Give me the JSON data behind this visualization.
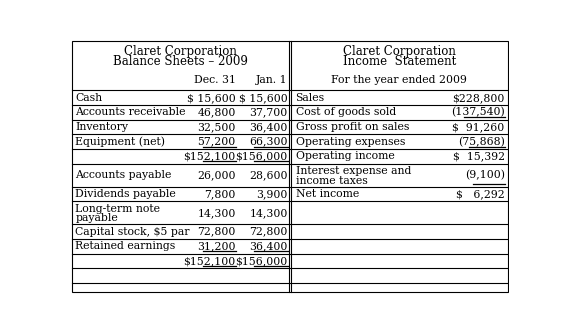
{
  "bs_title1": "Claret Corporation",
  "bs_title2": "Balance Sheets – 2009",
  "bs_col1": "Dec. 31",
  "bs_col2": "Jan. 1",
  "is_title1": "Claret Corporation",
  "is_title2": "Income  Statement",
  "is_col1": "For the year ended 2009",
  "bs_rows": [
    {
      "label": "Cash",
      "dec31": "$ 15,600",
      "jan1": "$ 15,600",
      "ul_dec": false,
      "ul_jan": false,
      "tall": false
    },
    {
      "label": "Accounts receivable",
      "dec31": "46,800",
      "jan1": "37,700",
      "ul_dec": false,
      "ul_jan": false,
      "tall": false
    },
    {
      "label": "Inventory",
      "dec31": "32,500",
      "jan1": "36,400",
      "ul_dec": false,
      "ul_jan": false,
      "tall": false
    },
    {
      "label": "Equipment (net)",
      "dec31": "57,200",
      "jan1": "66,300",
      "ul_dec": true,
      "ul_jan": true,
      "tall": false
    },
    {
      "label": "",
      "dec31": "$152,100",
      "jan1": "$156,000",
      "ul_dec": true,
      "ul_jan": true,
      "tall": false
    },
    {
      "label": "Accounts payable",
      "dec31": "26,000",
      "jan1": "28,600",
      "ul_dec": false,
      "ul_jan": false,
      "tall": true
    },
    {
      "label": "Dividends payable",
      "dec31": "7,800",
      "jan1": "3,900",
      "ul_dec": false,
      "ul_jan": false,
      "tall": false
    },
    {
      "label": "Long-term note\npayable",
      "dec31": "14,300",
      "jan1": "14,300",
      "ul_dec": false,
      "ul_jan": false,
      "tall": true
    },
    {
      "label": "Capital stock, $5 par",
      "dec31": "72,800",
      "jan1": "72,800",
      "ul_dec": false,
      "ul_jan": false,
      "tall": false
    },
    {
      "label": "Retained earnings",
      "dec31": "31,200",
      "jan1": "36,400",
      "ul_dec": true,
      "ul_jan": true,
      "tall": false
    },
    {
      "label": "",
      "dec31": "$152,100",
      "jan1": "$156,000",
      "ul_dec": true,
      "ul_jan": true,
      "tall": false
    },
    {
      "label": "",
      "dec31": "",
      "jan1": "",
      "ul_dec": false,
      "ul_jan": false,
      "tall": false
    }
  ],
  "is_rows": [
    {
      "label": "Sales",
      "val": "$228,800",
      "ul": false,
      "tall": false
    },
    {
      "label": "Cost of goods sold",
      "val": "(137,540)",
      "ul": true,
      "tall": false
    },
    {
      "label": "Gross profit on sales",
      "val": "$  91,260",
      "ul": false,
      "tall": false
    },
    {
      "label": "Operating expenses",
      "val": "(75,868)",
      "ul": true,
      "tall": false
    },
    {
      "label": "Operating income",
      "val": "$  15,392",
      "ul": false,
      "tall": false
    },
    {
      "label": "Interest expense and\nincome taxes",
      "val": "(9,100)",
      "ul": true,
      "tall": true
    },
    {
      "label": "Net income",
      "val": "$   6,292",
      "ul": false,
      "tall": false
    },
    {
      "label": "",
      "val": "",
      "ul": false,
      "tall": false
    },
    {
      "label": "",
      "val": "",
      "ul": false,
      "tall": true
    },
    {
      "label": "",
      "val": "",
      "ul": false,
      "tall": false
    },
    {
      "label": "",
      "val": "",
      "ul": false,
      "tall": false
    },
    {
      "label": "",
      "val": "",
      "ul": false,
      "tall": false
    }
  ],
  "bg_color": "#ffffff",
  "line_color": "#000000",
  "font_size": 7.8,
  "header_font_size": 8.5
}
